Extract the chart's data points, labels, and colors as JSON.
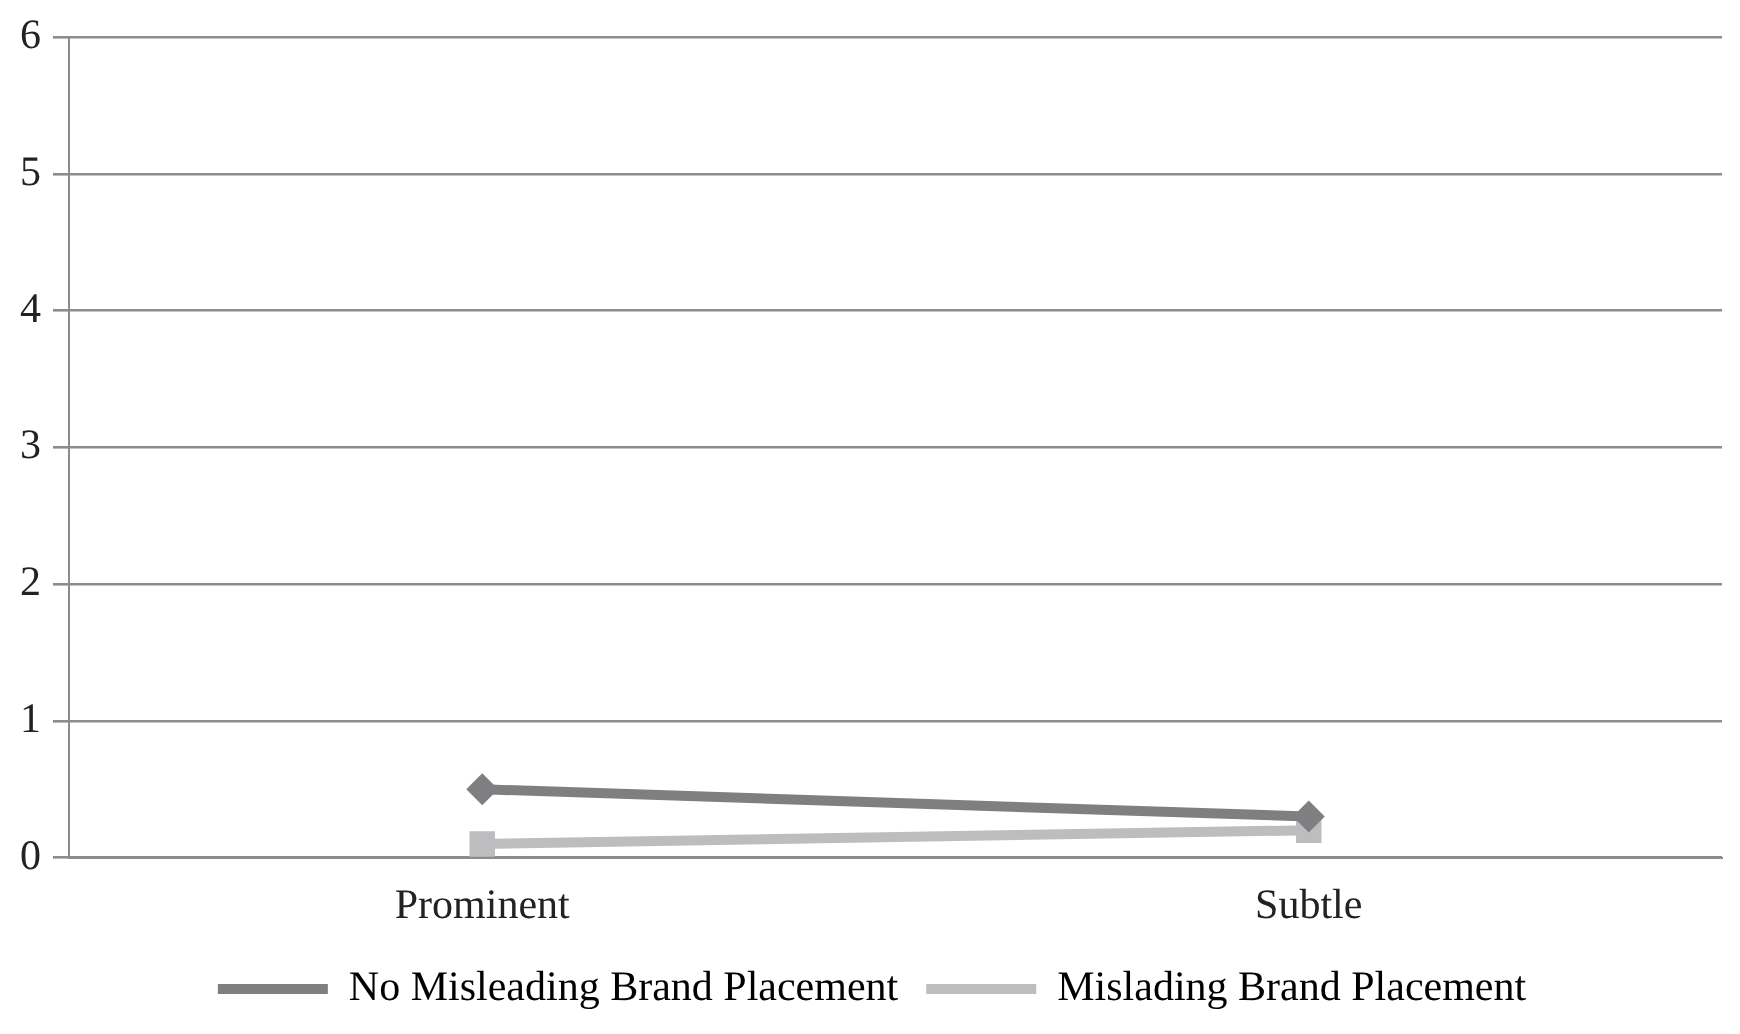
{
  "chart_data": {
    "type": "line",
    "categories": [
      "Prominent",
      "Subtle"
    ],
    "series": [
      {
        "name": "No Misleading Brand Placement",
        "color": "#7f7f81",
        "values": [
          0.5,
          0.3
        ],
        "marker": "diamond"
      },
      {
        "name": "Mislading Brand Placement",
        "color": "#bdbdbf",
        "values": [
          0.1,
          0.2
        ],
        "marker": "square"
      }
    ],
    "ylim": [
      0,
      6
    ],
    "yticks": [
      0,
      1,
      2,
      3,
      4,
      5,
      6
    ],
    "grid": "y",
    "legend": "bottom",
    "line_style": "solid"
  }
}
